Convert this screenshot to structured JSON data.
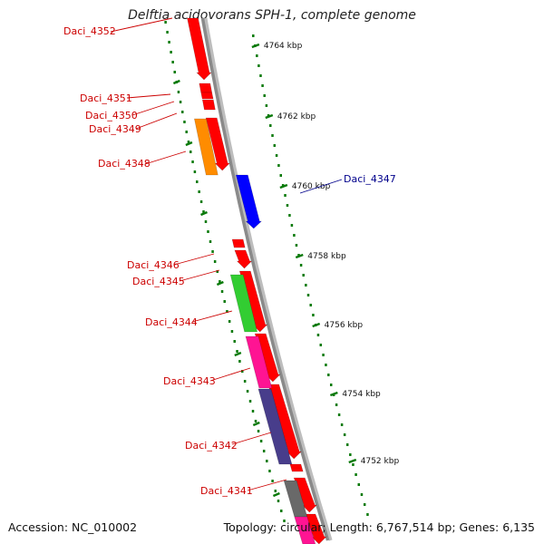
{
  "title": "Delftia acidovorans SPH-1, complete genome",
  "footer": {
    "accession": "Accession: NC_010002",
    "summary": "Topology: circular; Length: 6,767,514 bp; Genes: 6,135"
  },
  "colors": {
    "backbone": "#8a8a8a",
    "forward_gene": "#ff0000",
    "tick": "#0a7a0a",
    "label_red": "#cc0000",
    "label_blue": "#00008b"
  },
  "kbp_ticks": [
    "4764 kbp",
    "4762 kbp",
    "4760 kbp",
    "4758 kbp",
    "4756 kbp",
    "4754 kbp",
    "4752 kbp"
  ],
  "genes": [
    {
      "name": "Daci_4352",
      "color": "#ff0000"
    },
    {
      "name": "Daci_4351",
      "color": "#ff0000"
    },
    {
      "name": "Daci_4350",
      "color": "#ff0000"
    },
    {
      "name": "Daci_4349",
      "color": "#ff0000"
    },
    {
      "name": "Daci_4348",
      "color": "#ff8c00"
    },
    {
      "name": "Daci_4347",
      "color": "#0000ff"
    },
    {
      "name": "Daci_4346",
      "color": "#ff0000"
    },
    {
      "name": "Daci_4345",
      "color": "#ff0000"
    },
    {
      "name": "Daci_4344",
      "color": "#32cd32"
    },
    {
      "name": "Daci_4343",
      "color": "#ff1493"
    },
    {
      "name": "Daci_4342",
      "color": "#483d8b"
    },
    {
      "name": "Daci_4341",
      "color": "#696969"
    }
  ]
}
